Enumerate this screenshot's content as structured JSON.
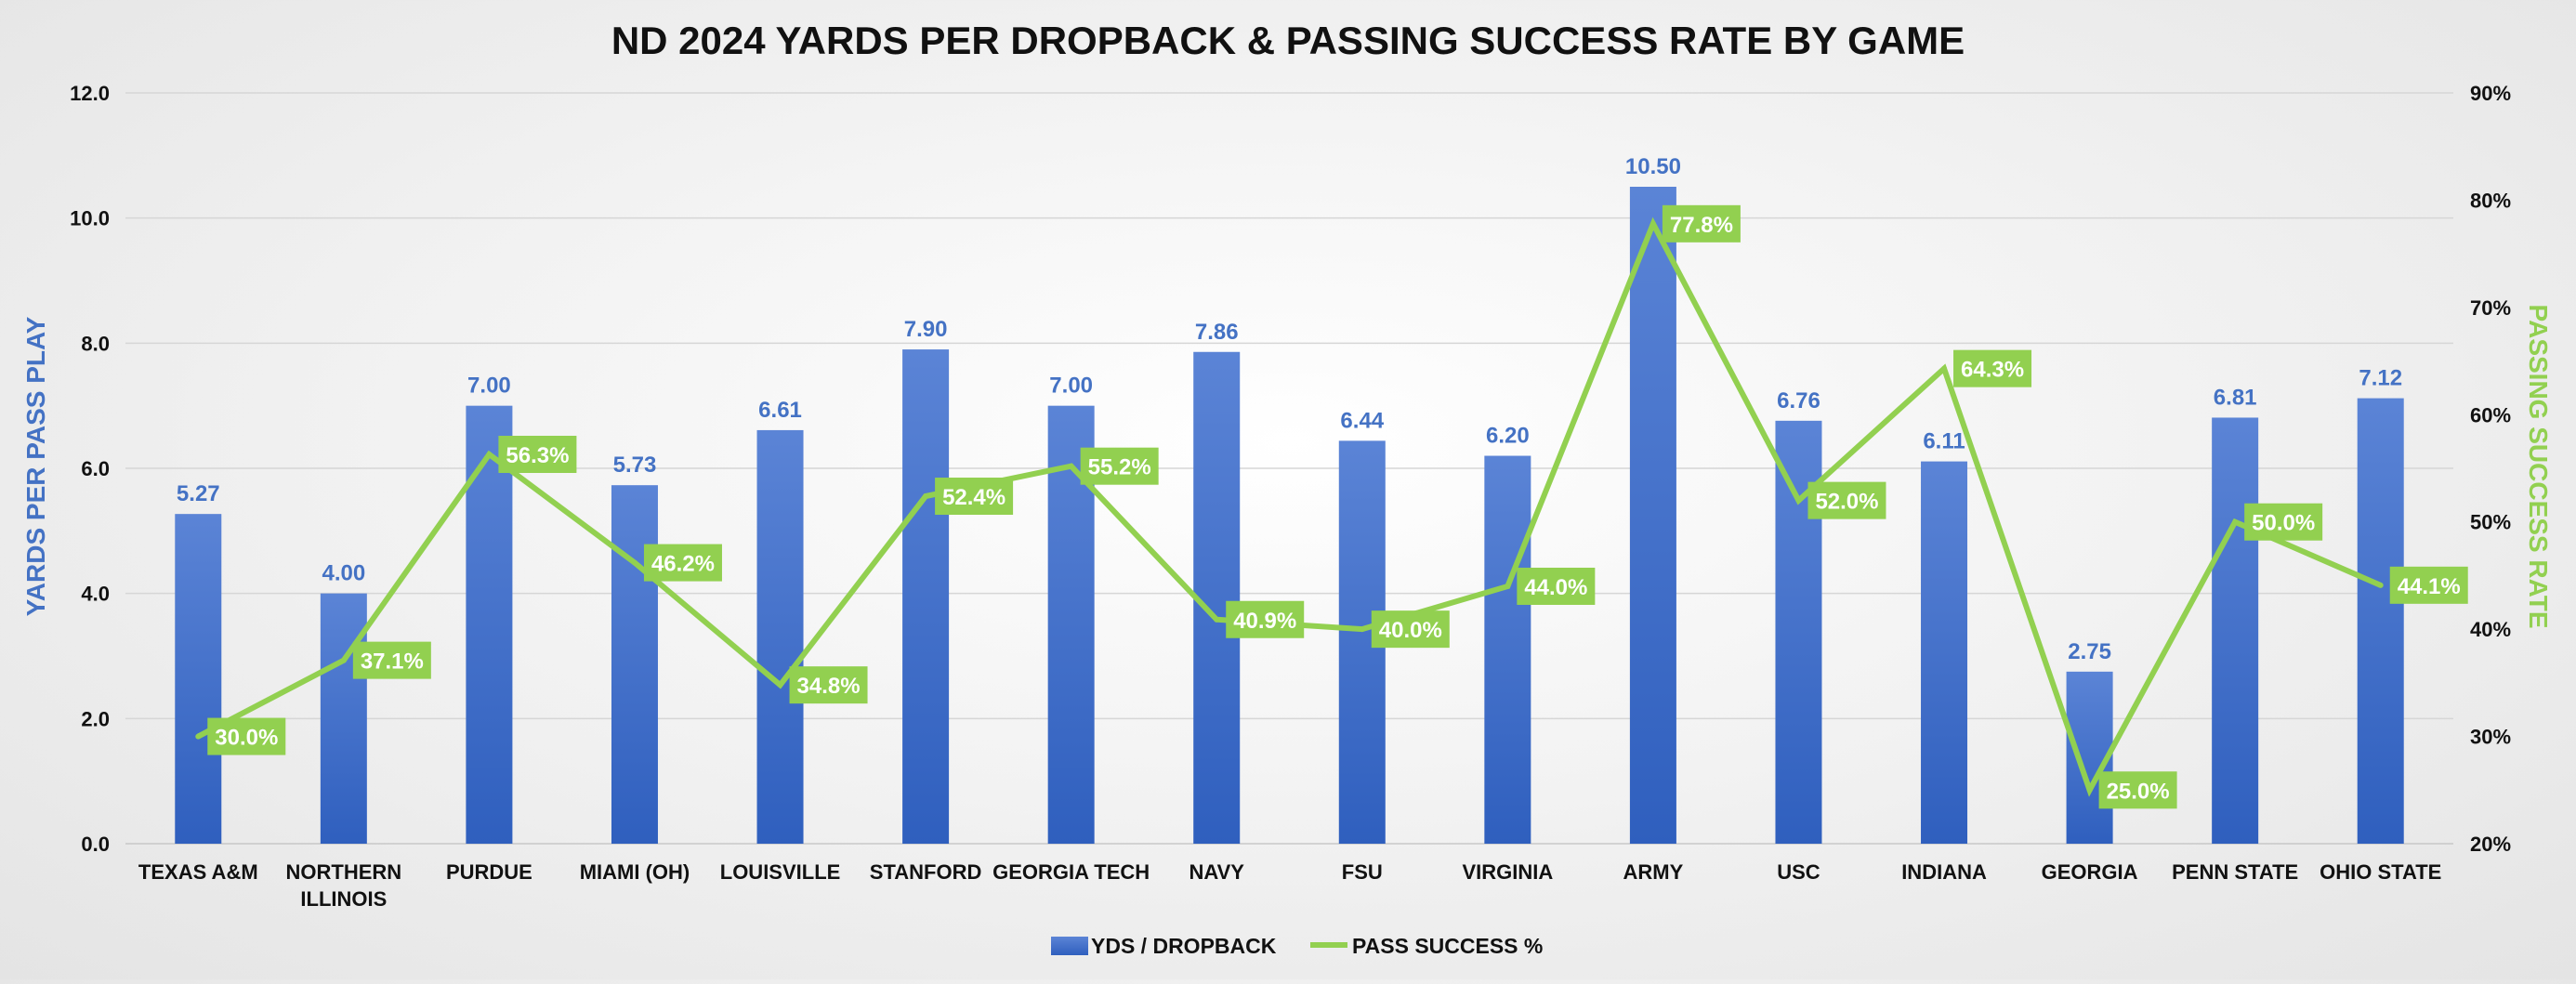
{
  "chart_data": {
    "type": "bar+line",
    "title": "ND 2024 YARDS PER DROPBACK & PASSING SUCCESS RATE BY GAME",
    "categories": [
      "TEXAS A&M",
      "NORTHERN ILLINOIS",
      "PURDUE",
      "MIAMI (OH)",
      "LOUISVILLE",
      "STANFORD",
      "GEORGIA TECH",
      "NAVY",
      "FSU",
      "VIRGINIA",
      "ARMY",
      "USC",
      "INDIANA",
      "GEORGIA",
      "PENN STATE",
      "OHIO STATE"
    ],
    "category_lines": [
      [
        "TEXAS A&M"
      ],
      [
        "NORTHERN",
        "ILLINOIS"
      ],
      [
        "PURDUE"
      ],
      [
        "MIAMI (OH)"
      ],
      [
        "LOUISVILLE"
      ],
      [
        "STANFORD"
      ],
      [
        "GEORGIA TECH"
      ],
      [
        "NAVY"
      ],
      [
        "FSU"
      ],
      [
        "VIRGINIA"
      ],
      [
        "ARMY"
      ],
      [
        "USC"
      ],
      [
        "INDIANA"
      ],
      [
        "GEORGIA"
      ],
      [
        "PENN STATE"
      ],
      [
        "OHIO STATE"
      ]
    ],
    "series": [
      {
        "name": "YDS / DROPBACK",
        "type": "bar",
        "axis": "left",
        "color": "#4472C4",
        "values": [
          5.27,
          4.0,
          7.0,
          5.73,
          6.61,
          7.9,
          7.0,
          7.86,
          6.44,
          6.2,
          10.5,
          6.76,
          6.11,
          2.75,
          6.81,
          7.12
        ],
        "labels": [
          "5.27",
          "4.00",
          "7.00",
          "5.73",
          "6.61",
          "7.90",
          "7.00",
          "7.86",
          "6.44",
          "6.20",
          "10.50",
          "6.76",
          "6.11",
          "2.75",
          "6.81",
          "7.12"
        ]
      },
      {
        "name": "PASS SUCCESS %",
        "type": "line",
        "axis": "right",
        "color": "#92D050",
        "values": [
          30.0,
          37.1,
          56.3,
          46.2,
          34.8,
          52.4,
          55.2,
          40.9,
          40.0,
          44.0,
          77.8,
          52.0,
          64.3,
          25.0,
          50.0,
          44.1
        ],
        "labels": [
          "30.0%",
          "37.1%",
          "56.3%",
          "46.2%",
          "34.8%",
          "52.4%",
          "55.2%",
          "40.9%",
          "40.0%",
          "44.0%",
          "77.8%",
          "52.0%",
          "64.3%",
          "25.0%",
          "50.0%",
          "44.1%"
        ]
      }
    ],
    "left_axis": {
      "label": "YARDS PER PASS PLAY",
      "ylim": [
        0,
        12
      ],
      "ticks": [
        0,
        2,
        4,
        6,
        8,
        10,
        12
      ],
      "tick_labels": [
        "0.0",
        "2.0",
        "4.0",
        "6.0",
        "8.0",
        "10.0",
        "12.0"
      ],
      "color": "#4472C4"
    },
    "right_axis": {
      "label": "PASSING SUCCESS RATE",
      "ylim": [
        20,
        90
      ],
      "ticks": [
        20,
        30,
        40,
        50,
        60,
        70,
        80,
        90
      ],
      "tick_labels": [
        "20%",
        "30%",
        "40%",
        "50%",
        "60%",
        "70%",
        "80%",
        "90%"
      ],
      "color": "#92D050"
    },
    "grid": true,
    "legend_position": "bottom-center"
  }
}
